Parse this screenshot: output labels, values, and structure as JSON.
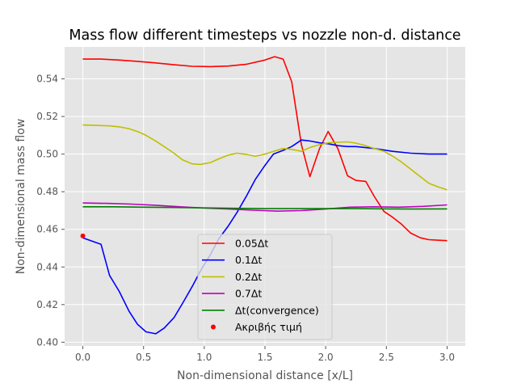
{
  "chart_data": {
    "type": "line",
    "title": "Mass flow different timesteps vs nozzle non-d. distance",
    "xlabel": "Non-dimensional distance [x/L]",
    "ylabel": "Non-dimensional mass flow",
    "xlim": [
      -0.15,
      3.15
    ],
    "ylim": [
      0.398,
      0.557
    ],
    "xticks": [
      0.0,
      0.5,
      1.0,
      1.5,
      2.0,
      2.5,
      3.0
    ],
    "xtick_labels": [
      "0.0",
      "0.5",
      "1.0",
      "1.5",
      "2.0",
      "2.5",
      "3.0"
    ],
    "yticks": [
      0.4,
      0.42,
      0.44,
      0.46,
      0.48,
      0.5,
      0.52,
      0.54
    ],
    "ytick_labels": [
      "0.40",
      "0.42",
      "0.44",
      "0.46",
      "0.48",
      "0.50",
      "0.52",
      "0.54"
    ],
    "grid": true,
    "legend_position": "lower-center",
    "series": [
      {
        "name": "0.05Δt",
        "color": "#ff0000",
        "x": [
          0.0,
          0.15,
          0.3,
          0.45,
          0.6,
          0.75,
          0.9,
          1.05,
          1.2,
          1.35,
          1.5,
          1.58,
          1.65,
          1.72,
          1.8,
          1.87,
          1.95,
          2.02,
          2.1,
          2.18,
          2.25,
          2.33,
          2.4,
          2.48,
          2.55,
          2.62,
          2.7,
          2.78,
          2.85,
          2.93,
          3.0
        ],
        "y": [
          0.5505,
          0.5505,
          0.55,
          0.5493,
          0.5485,
          0.5475,
          0.5467,
          0.5465,
          0.5468,
          0.5478,
          0.55,
          0.5518,
          0.5505,
          0.5385,
          0.505,
          0.488,
          0.503,
          0.512,
          0.503,
          0.4885,
          0.486,
          0.4855,
          0.4775,
          0.4695,
          0.4665,
          0.463,
          0.458,
          0.4555,
          0.4545,
          0.4542,
          0.454
        ]
      },
      {
        "name": "0.1Δt",
        "color": "#0000ff",
        "x": [
          0.0,
          0.15,
          0.22,
          0.3,
          0.38,
          0.45,
          0.52,
          0.6,
          0.67,
          0.75,
          0.82,
          0.9,
          0.97,
          1.05,
          1.12,
          1.2,
          1.27,
          1.35,
          1.42,
          1.5,
          1.57,
          1.65,
          1.72,
          1.8,
          1.87,
          1.95,
          2.02,
          2.1,
          2.18,
          2.25,
          2.4,
          2.55,
          2.7,
          2.85,
          3.0
        ],
        "y": [
          0.4555,
          0.452,
          0.4355,
          0.427,
          0.4165,
          0.4095,
          0.4055,
          0.4045,
          0.4075,
          0.413,
          0.4205,
          0.4295,
          0.438,
          0.4465,
          0.455,
          0.462,
          0.469,
          0.478,
          0.4865,
          0.494,
          0.5,
          0.502,
          0.504,
          0.5075,
          0.507,
          0.506,
          0.5055,
          0.5045,
          0.504,
          0.504,
          0.503,
          0.5015,
          0.5005,
          0.5,
          0.5
        ]
      },
      {
        "name": "0.2Δt",
        "color": "#bfbf00",
        "x": [
          0.0,
          0.15,
          0.22,
          0.3,
          0.38,
          0.45,
          0.52,
          0.6,
          0.67,
          0.75,
          0.82,
          0.9,
          0.97,
          1.05,
          1.12,
          1.2,
          1.27,
          1.35,
          1.42,
          1.5,
          1.57,
          1.65,
          1.72,
          1.8,
          1.87,
          1.95,
          2.02,
          2.1,
          2.18,
          2.25,
          2.33,
          2.4,
          2.48,
          2.55,
          2.62,
          2.7,
          2.78,
          2.85,
          2.93,
          3.0
        ],
        "y": [
          0.5155,
          0.5152,
          0.515,
          0.5145,
          0.5135,
          0.512,
          0.51,
          0.507,
          0.504,
          0.5005,
          0.497,
          0.4948,
          0.4945,
          0.4955,
          0.4975,
          0.4995,
          0.5005,
          0.4998,
          0.4988,
          0.5,
          0.5015,
          0.503,
          0.5025,
          0.5015,
          0.5035,
          0.505,
          0.506,
          0.5063,
          0.5065,
          0.5058,
          0.5045,
          0.503,
          0.5015,
          0.499,
          0.496,
          0.492,
          0.488,
          0.4845,
          0.4825,
          0.481
        ]
      },
      {
        "name": "0.7Δt",
        "color": "#bf00bf",
        "x": [
          0.0,
          0.2,
          0.4,
          0.6,
          0.8,
          1.0,
          1.2,
          1.4,
          1.6,
          1.8,
          2.0,
          2.2,
          2.4,
          2.6,
          2.8,
          3.0
        ],
        "y": [
          0.474,
          0.4738,
          0.4734,
          0.4728,
          0.472,
          0.4713,
          0.4708,
          0.4702,
          0.4697,
          0.47,
          0.4708,
          0.4718,
          0.472,
          0.4718,
          0.4722,
          0.473
        ]
      },
      {
        "name": "Δt(convergence)",
        "color": "#008000",
        "x": [
          0.0,
          0.25,
          0.5,
          0.75,
          1.0,
          1.25,
          1.5,
          1.75,
          2.0,
          2.25,
          2.5,
          2.75,
          3.0
        ],
        "y": [
          0.472,
          0.472,
          0.4718,
          0.4716,
          0.4714,
          0.4712,
          0.471,
          0.471,
          0.471,
          0.471,
          0.4709,
          0.4708,
          0.4709
        ]
      }
    ],
    "scatter": [
      {
        "name": "Ακριβής τιμή",
        "color": "#ff0000",
        "x": [
          0.0
        ],
        "y": [
          0.4565
        ]
      }
    ]
  }
}
